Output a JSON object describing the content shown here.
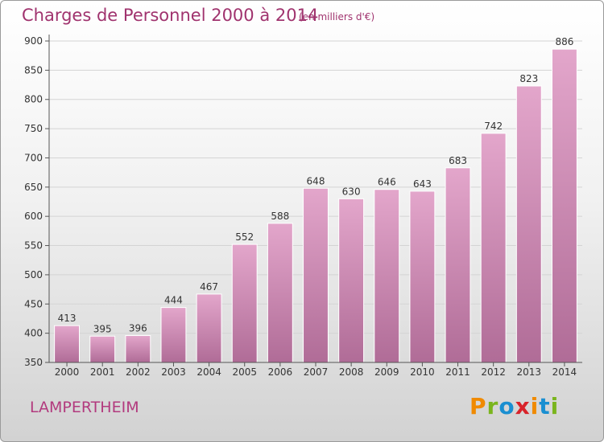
{
  "header": {
    "title": "Charges de Personnel 2000 à 2014",
    "subtitle": "(en milliers d'€)"
  },
  "footer": {
    "commune": "LAMPERTHEIM",
    "brand": "Proxiti"
  },
  "colors": {
    "title": "#a0336e",
    "bar_top": "#e3a6cb",
    "bar_bottom": "#b06c97",
    "logo_letters": [
      "#f08a00",
      "#7ab51d",
      "#1a8fd1",
      "#d8232a",
      "#f08a00",
      "#1a8fd1",
      "#7ab51d"
    ]
  },
  "chart_data": {
    "type": "bar",
    "title": "Charges de Personnel 2000 à 2014",
    "subtitle": "(en milliers d'€)",
    "categories": [
      "2000",
      "2001",
      "2002",
      "2003",
      "2004",
      "2005",
      "2006",
      "2007",
      "2008",
      "2009",
      "2010",
      "2011",
      "2012",
      "2013",
      "2014"
    ],
    "values": [
      413,
      395,
      396,
      444,
      467,
      552,
      588,
      648,
      630,
      646,
      643,
      683,
      742,
      823,
      886
    ],
    "ylim": [
      350,
      900
    ],
    "yticks": [
      350,
      400,
      450,
      500,
      550,
      600,
      650,
      700,
      750,
      800,
      850,
      900
    ],
    "grid": true,
    "data_labels": true
  }
}
